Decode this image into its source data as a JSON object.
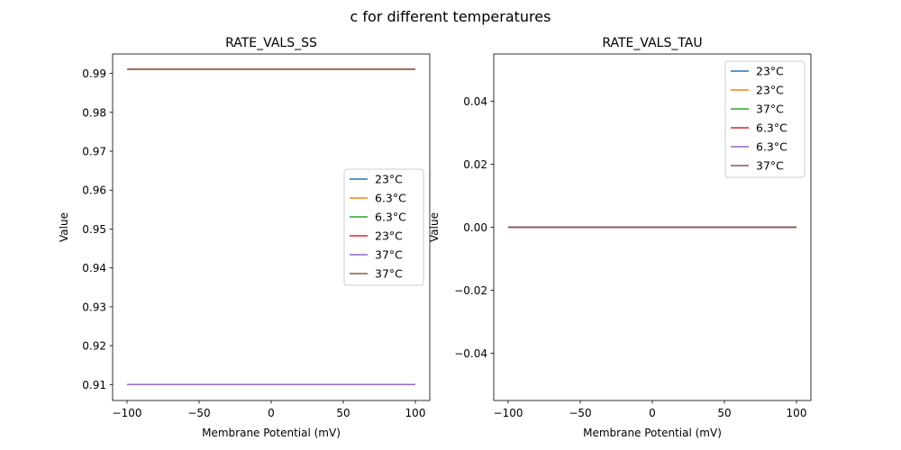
{
  "chart_data": [
    {
      "type": "line",
      "title": "RATE_VALS_SS",
      "xlabel": "Membrane Potential (mV)",
      "ylabel": "Value",
      "xlim": [
        -110,
        110
      ],
      "ylim": [
        0.9059,
        0.995
      ],
      "xticks": [
        -100,
        -50,
        0,
        50,
        100
      ],
      "xtick_labels": [
        "−100",
        "−50",
        "0",
        "50",
        "100"
      ],
      "yticks": [
        0.91,
        0.92,
        0.93,
        0.94,
        0.95,
        0.96,
        0.97,
        0.98,
        0.99
      ],
      "ytick_labels": [
        "0.91",
        "0.92",
        "0.93",
        "0.94",
        "0.95",
        "0.96",
        "0.97",
        "0.98",
        "0.99"
      ],
      "legend_placement": "center-right",
      "series": [
        {
          "name": "23°C",
          "color": "#1f77b4",
          "x": [
            -100,
            100
          ],
          "y": [
            0.9911,
            0.9911
          ]
        },
        {
          "name": "6.3°C",
          "color": "#ff7f0e",
          "x": [
            -100,
            100
          ],
          "y": [
            0.9911,
            0.9911
          ]
        },
        {
          "name": "6.3°C",
          "color": "#2ca02c",
          "x": [
            -100,
            100
          ],
          "y": [
            0.91,
            0.91
          ]
        },
        {
          "name": "23°C",
          "color": "#d62728",
          "x": [
            -100,
            100
          ],
          "y": [
            0.91,
            0.91
          ]
        },
        {
          "name": "37°C",
          "color": "#9467bd",
          "x": [
            -100,
            100
          ],
          "y": [
            0.91,
            0.91
          ]
        },
        {
          "name": "37°C",
          "color": "#8c564b",
          "x": [
            -100,
            100
          ],
          "y": [
            0.9911,
            0.9911
          ]
        }
      ]
    },
    {
      "type": "line",
      "title": "RATE_VALS_TAU",
      "xlabel": "Membrane Potential (mV)",
      "ylabel": "Value",
      "xlim": [
        -110,
        110
      ],
      "ylim": [
        -0.055,
        0.055
      ],
      "xticks": [
        -100,
        -50,
        0,
        50,
        100
      ],
      "xtick_labels": [
        "−100",
        "−50",
        "0",
        "50",
        "100"
      ],
      "yticks": [
        -0.04,
        -0.02,
        0,
        0.02,
        0.04
      ],
      "ytick_labels": [
        "−0.04",
        "−0.02",
        "0.00",
        "0.02",
        "0.04"
      ],
      "legend_placement": "upper-right",
      "series": [
        {
          "name": "23°C",
          "color": "#1f77b4",
          "x": [
            -100,
            100
          ],
          "y": [
            0,
            0
          ]
        },
        {
          "name": "23°C",
          "color": "#ff7f0e",
          "x": [
            -100,
            100
          ],
          "y": [
            0,
            0
          ]
        },
        {
          "name": "37°C",
          "color": "#2ca02c",
          "x": [
            -100,
            100
          ],
          "y": [
            0,
            0
          ]
        },
        {
          "name": "6.3°C",
          "color": "#d62728",
          "x": [
            -100,
            100
          ],
          "y": [
            0,
            0
          ]
        },
        {
          "name": "6.3°C",
          "color": "#9467bd",
          "x": [
            -100,
            100
          ],
          "y": [
            0,
            0
          ]
        },
        {
          "name": "37°C",
          "color": "#8c564b",
          "x": [
            -100,
            100
          ],
          "y": [
            0,
            0
          ]
        }
      ]
    }
  ],
  "suptitle": "c for different temperatures"
}
